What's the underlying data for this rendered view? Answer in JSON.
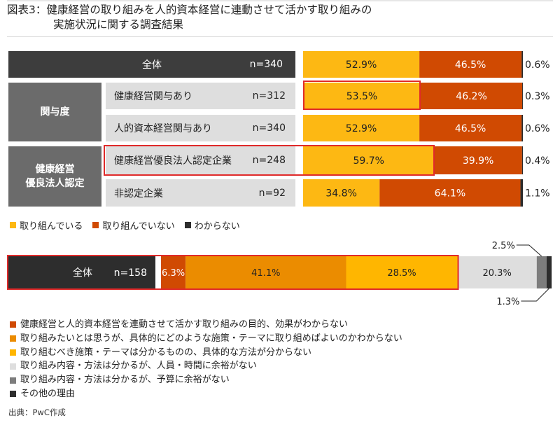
{
  "title": {
    "line1": "図表3：健康経営の取り組みを人的資本経営に連動させて活かす取り組みの",
    "line2": "実施状況に関する調査結果"
  },
  "source": "出典：PwC作成",
  "colors": {
    "yes": "#fdb813",
    "no": "#d04a02",
    "unknown": "#2d2d2d",
    "reason1": "#d04a02",
    "reason2": "#eb8c00",
    "reason3": "#ffb600",
    "reason4": "#dedede",
    "reason5": "#7d7d7d",
    "reason6": "#2d2d2d",
    "highlight": "#e02a2a"
  },
  "groups": [
    {
      "label": "関与度"
    },
    {
      "label": "健康経営\n優良法人認定"
    }
  ],
  "chart_data": [
    {
      "type": "bar",
      "orientation": "horizontal",
      "stacked": true,
      "categories": [
        "全体",
        "健康経営関与あり",
        "人的資本経営関与あり",
        "健康経営優良法人認定企業",
        "非認定企業"
      ],
      "n": [
        "n=340",
        "n=312",
        "n=340",
        "n=248",
        "n=92"
      ],
      "series": [
        {
          "name": "取り組んでいる",
          "values": [
            52.9,
            53.5,
            52.9,
            59.7,
            34.8
          ],
          "labels": [
            "52.9%",
            "53.5%",
            "52.9%",
            "59.7%",
            "34.8%"
          ]
        },
        {
          "name": "取り組んでいない",
          "values": [
            46.5,
            46.2,
            46.5,
            39.9,
            64.1
          ],
          "labels": [
            "46.5%",
            "46.2%",
            "46.5%",
            "39.9%",
            "64.1%"
          ]
        },
        {
          "name": "わからない",
          "values": [
            0.6,
            0.3,
            0.6,
            0.4,
            1.1
          ],
          "labels": [
            "0.6%",
            "0.3%",
            "0.6%",
            "0.4%",
            "1.1%"
          ]
        }
      ],
      "xlim": [
        0,
        100
      ],
      "legend": "bottom-left"
    },
    {
      "type": "bar",
      "orientation": "horizontal",
      "stacked": true,
      "categories": [
        "全体"
      ],
      "n": [
        "n=158"
      ],
      "series": [
        {
          "name": "健康経営と人的資本経営を連動させて活かす取り組みの目的、効果がわからない",
          "values": [
            6.3
          ],
          "labels": [
            "6.3%"
          ]
        },
        {
          "name": "取り組みたいとは思うが、具体的にどのような施策・テーマに取り組めばよいのかわからない",
          "values": [
            41.1
          ],
          "labels": [
            "41.1%"
          ]
        },
        {
          "name": "取り組むべき施策・テーマは分かるものの、具体的な方法が分からない",
          "values": [
            28.5
          ],
          "labels": [
            "28.5%"
          ]
        },
        {
          "name": "取り組み内容・方法は分かるが、人員・時間に余裕がない",
          "values": [
            20.3
          ],
          "labels": [
            "20.3%"
          ]
        },
        {
          "name": "取り組み内容・方法は分かるが、予算に余裕がない",
          "values": [
            2.5
          ],
          "labels": [
            "2.5%"
          ]
        },
        {
          "name": "その他の理由",
          "values": [
            1.3
          ],
          "labels": [
            "1.3%"
          ]
        }
      ],
      "xlim": [
        0,
        100
      ],
      "legend": "bottom-left"
    }
  ]
}
